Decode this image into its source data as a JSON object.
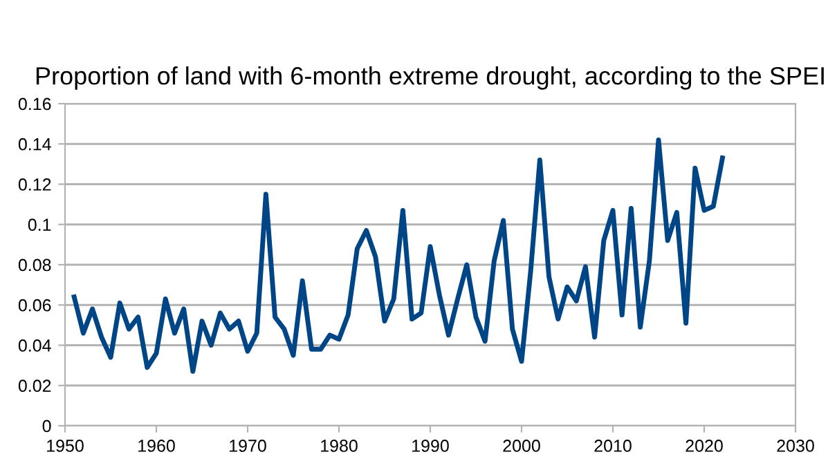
{
  "chart_data": {
    "type": "line",
    "title": "Proportion of land with 6-month extreme drought, according to the SPEI",
    "x": [
      1951,
      1952,
      1953,
      1954,
      1955,
      1956,
      1957,
      1958,
      1959,
      1960,
      1961,
      1962,
      1963,
      1964,
      1965,
      1966,
      1967,
      1968,
      1969,
      1970,
      1971,
      1972,
      1973,
      1974,
      1975,
      1976,
      1977,
      1978,
      1979,
      1980,
      1981,
      1982,
      1983,
      1984,
      1985,
      1986,
      1987,
      1988,
      1989,
      1990,
      1991,
      1992,
      1993,
      1994,
      1995,
      1996,
      1997,
      1998,
      1999,
      2000,
      2001,
      2002,
      2003,
      2004,
      2005,
      2006,
      2007,
      2008,
      2009,
      2010,
      2011,
      2012,
      2013,
      2014,
      2015,
      2016,
      2017,
      2018,
      2019,
      2020,
      2021,
      2022
    ],
    "series": [
      {
        "color": "#004586",
        "values": [
          0.064,
          0.046,
          0.058,
          0.044,
          0.034,
          0.061,
          0.048,
          0.054,
          0.029,
          0.036,
          0.063,
          0.046,
          0.058,
          0.027,
          0.052,
          0.04,
          0.056,
          0.048,
          0.052,
          0.037,
          0.046,
          0.115,
          0.054,
          0.048,
          0.035,
          0.072,
          0.038,
          0.038,
          0.045,
          0.043,
          0.055,
          0.088,
          0.097,
          0.084,
          0.052,
          0.063,
          0.107,
          0.053,
          0.056,
          0.089,
          0.065,
          0.045,
          0.063,
          0.08,
          0.054,
          0.042,
          0.082,
          0.102,
          0.048,
          0.032,
          0.077,
          0.132,
          0.074,
          0.053,
          0.069,
          0.062,
          0.079,
          0.044,
          0.092,
          0.107,
          0.055,
          0.108,
          0.049,
          0.082,
          0.142,
          0.092,
          0.106,
          0.051,
          0.128,
          0.107,
          0.109,
          0.133
        ]
      }
    ],
    "xlim": [
      1950,
      2030
    ],
    "xticks": [
      1950,
      1960,
      1970,
      1980,
      1990,
      2000,
      2010,
      2020,
      2030
    ],
    "ylim": [
      0,
      0.16
    ],
    "yticks": [
      0,
      0.02,
      0.04,
      0.06,
      0.08,
      0.1,
      0.12,
      0.14,
      0.16
    ],
    "grid": "y",
    "legend": false,
    "marker": "none",
    "line_style": "solid"
  }
}
